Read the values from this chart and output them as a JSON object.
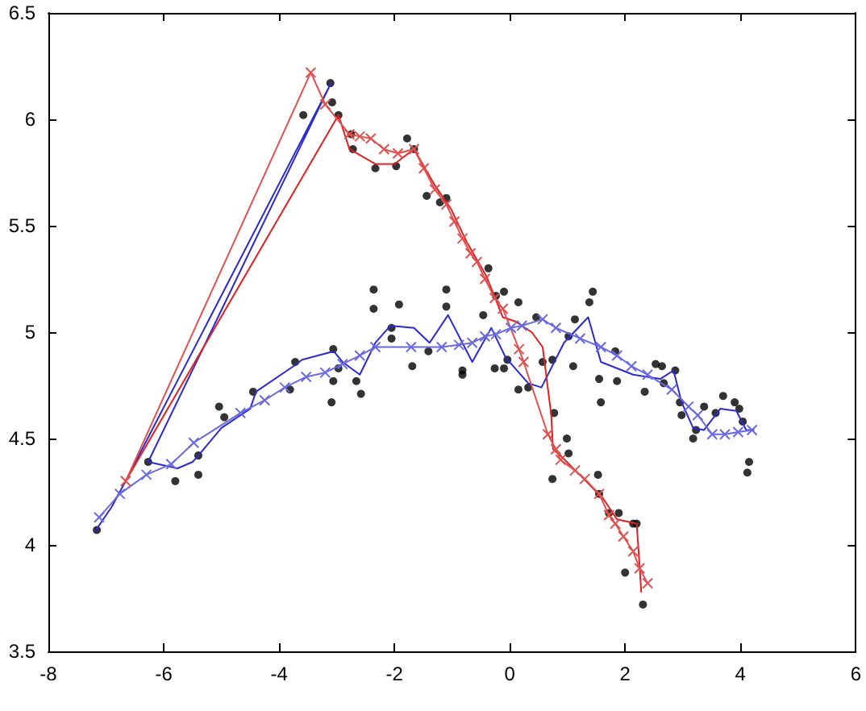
{
  "chart_data": {
    "type": "line",
    "xlim": [
      -8,
      6
    ],
    "ylim": [
      3.5,
      6.5
    ],
    "xticks": [
      -8,
      -6,
      -4,
      -2,
      0,
      2,
      4,
      6
    ],
    "yticks": [
      3.5,
      4,
      4.5,
      5,
      5.5,
      6,
      6.5
    ],
    "grid": false,
    "series": [
      {
        "type": "scatter",
        "color": "#000000",
        "marker": "circle",
        "x": [
          -3.58,
          -3.11,
          -3.08,
          -2.97,
          -2.75,
          -2.72,
          -2.33,
          -1.97,
          -1.78,
          -1.66,
          -1.44,
          -1.21,
          -1.1,
          -2.36,
          -2.36,
          -1.92,
          -2.05,
          -1.1,
          -1.1,
          -7.16,
          -6.27,
          -5.8,
          -5.4,
          -5.4,
          -5.04,
          -4.95,
          -4.45,
          -3.81,
          -3.72,
          -3.06,
          -3.06,
          -3.09,
          -2.97,
          -2.66,
          -2.58,
          -2.05,
          -1.69,
          -1.41,
          -0.82,
          -0.82,
          -0.46,
          -0.37,
          -0.24,
          -0.1,
          -0.26,
          -0.1,
          -0.04,
          0.15,
          0.15,
          0.32,
          0.46,
          0.57,
          0.74,
          1.02,
          1.13,
          1.1,
          1.38,
          1.44,
          1.58,
          1.55,
          1.86,
          1.83,
          2.53,
          2.64,
          2.87,
          2.67,
          2.34,
          2.95,
          2.98,
          3.37,
          3.23,
          3.18,
          3.7,
          3.9,
          3.98,
          4.04,
          3.57,
          4.15,
          4.12,
          0.77,
          0.99,
          1.02,
          0.74,
          1.53,
          1.55,
          1.72,
          1.89,
          2.14,
          2.2,
          2.0,
          2.31
        ],
        "values": [
          6.02,
          6.17,
          6.08,
          6.02,
          5.93,
          5.86,
          5.77,
          5.78,
          5.91,
          5.86,
          5.64,
          5.61,
          5.63,
          5.2,
          5.11,
          5.13,
          5.02,
          5.2,
          5.12,
          4.07,
          4.39,
          4.3,
          4.33,
          4.42,
          4.65,
          4.6,
          4.72,
          4.73,
          4.86,
          4.92,
          4.77,
          4.67,
          4.83,
          4.77,
          4.71,
          4.97,
          4.84,
          4.91,
          4.82,
          4.8,
          5.08,
          5.3,
          5.17,
          5.19,
          4.83,
          4.83,
          4.87,
          5.14,
          4.73,
          4.74,
          5.07,
          4.86,
          4.87,
          4.98,
          5.06,
          4.84,
          5.14,
          5.19,
          4.67,
          4.78,
          4.77,
          4.91,
          4.85,
          4.84,
          4.82,
          4.76,
          4.72,
          4.67,
          4.61,
          4.65,
          4.54,
          4.5,
          4.7,
          4.67,
          4.64,
          4.58,
          4.62,
          4.39,
          4.34,
          4.62,
          4.5,
          4.43,
          4.31,
          4.33,
          4.24,
          4.15,
          4.15,
          4.1,
          4.1,
          3.87,
          3.72
        ]
      },
      {
        "color": "#2a2ad0",
        "marker": "none",
        "x": [
          -7.2,
          -6.9,
          -6.66,
          -3.1,
          -6.27,
          -5.76,
          -5.5,
          -5.4,
          -5.0,
          -4.5,
          -4.4,
          -3.75,
          -3.6,
          -3.05,
          -2.9,
          -2.6,
          -2.33,
          -2.07,
          -1.66,
          -1.39,
          -1.07,
          -0.65,
          -0.32,
          -0.07,
          0.32,
          0.55,
          0.94,
          1.36,
          1.58,
          2.14,
          2.61,
          2.84,
          2.98,
          3.18,
          3.37,
          3.65,
          3.93,
          4.1,
          4.23
        ],
        "values": [
          4.06,
          4.18,
          4.3,
          6.17,
          4.39,
          4.36,
          4.39,
          4.42,
          4.55,
          4.64,
          4.72,
          4.84,
          4.87,
          4.91,
          4.86,
          4.8,
          4.95,
          5.03,
          5.02,
          4.95,
          5.08,
          4.86,
          5.02,
          4.88,
          4.76,
          4.74,
          4.95,
          5.07,
          4.86,
          4.8,
          4.78,
          4.82,
          4.67,
          4.55,
          4.54,
          4.64,
          4.63,
          4.54,
          4.54
        ]
      },
      {
        "color": "#6a6ae0",
        "marker": "cross",
        "x": [
          -7.12,
          -6.76,
          -6.3,
          -5.87,
          -5.48,
          -4.67,
          -4.25,
          -3.9,
          -3.53,
          -3.2,
          -2.9,
          -2.6,
          -2.33,
          -1.71,
          -1.18,
          -0.88,
          -0.65,
          -0.43,
          -0.24,
          0.02,
          0.21,
          0.57,
          0.8,
          1.22,
          1.58,
          1.86,
          2.11,
          2.39,
          2.81,
          3.1,
          3.26,
          3.51,
          3.73,
          3.96,
          4.2
        ],
        "values": [
          4.13,
          4.24,
          4.33,
          4.38,
          4.48,
          4.62,
          4.68,
          4.74,
          4.79,
          4.81,
          4.85,
          4.89,
          4.93,
          4.93,
          4.93,
          4.94,
          4.95,
          4.98,
          4.99,
          5.02,
          5.03,
          5.06,
          5.02,
          4.97,
          4.93,
          4.89,
          4.84,
          4.8,
          4.73,
          4.65,
          4.61,
          4.52,
          4.52,
          4.53,
          4.54
        ]
      },
      {
        "color": "#e02020",
        "marker": "none",
        "x": [
          -6.66,
          -2.97,
          -2.78,
          -2.33,
          -2.0,
          -1.66,
          -1.3,
          -1.02,
          -0.74,
          -0.4,
          -0.12,
          0.1,
          0.38,
          0.57,
          0.72,
          0.75,
          0.88,
          1.36,
          1.64,
          1.86,
          2.2,
          2.25,
          2.28
        ],
        "values": [
          4.3,
          6.02,
          5.86,
          5.79,
          5.79,
          5.86,
          5.69,
          5.58,
          5.42,
          5.26,
          5.07,
          5.05,
          5.0,
          4.93,
          4.61,
          4.45,
          4.42,
          4.29,
          4.21,
          4.12,
          4.1,
          3.91,
          3.78
        ]
      },
      {
        "color": "#e05050",
        "marker": "cross",
        "x": [
          -6.66,
          -3.45,
          -3.2,
          -2.78,
          -2.6,
          -2.41,
          -2.18,
          -1.94,
          -1.66,
          -1.49,
          -1.3,
          -1.1,
          -0.96,
          -0.82,
          -0.68,
          -0.57,
          -0.43,
          -0.26,
          -0.12,
          0.16,
          0.24,
          0.66,
          0.8,
          0.88,
          1.13,
          1.3,
          1.55,
          1.72,
          1.83,
          1.97,
          2.14,
          2.25,
          2.39
        ],
        "values": [
          4.3,
          6.22,
          6.07,
          5.93,
          5.92,
          5.91,
          5.86,
          5.84,
          5.86,
          5.77,
          5.67,
          5.6,
          5.52,
          5.44,
          5.37,
          5.33,
          5.25,
          5.16,
          5.11,
          4.92,
          4.86,
          4.52,
          4.45,
          4.4,
          4.35,
          4.31,
          4.24,
          4.14,
          4.1,
          4.04,
          3.97,
          3.89,
          3.82
        ]
      }
    ]
  }
}
